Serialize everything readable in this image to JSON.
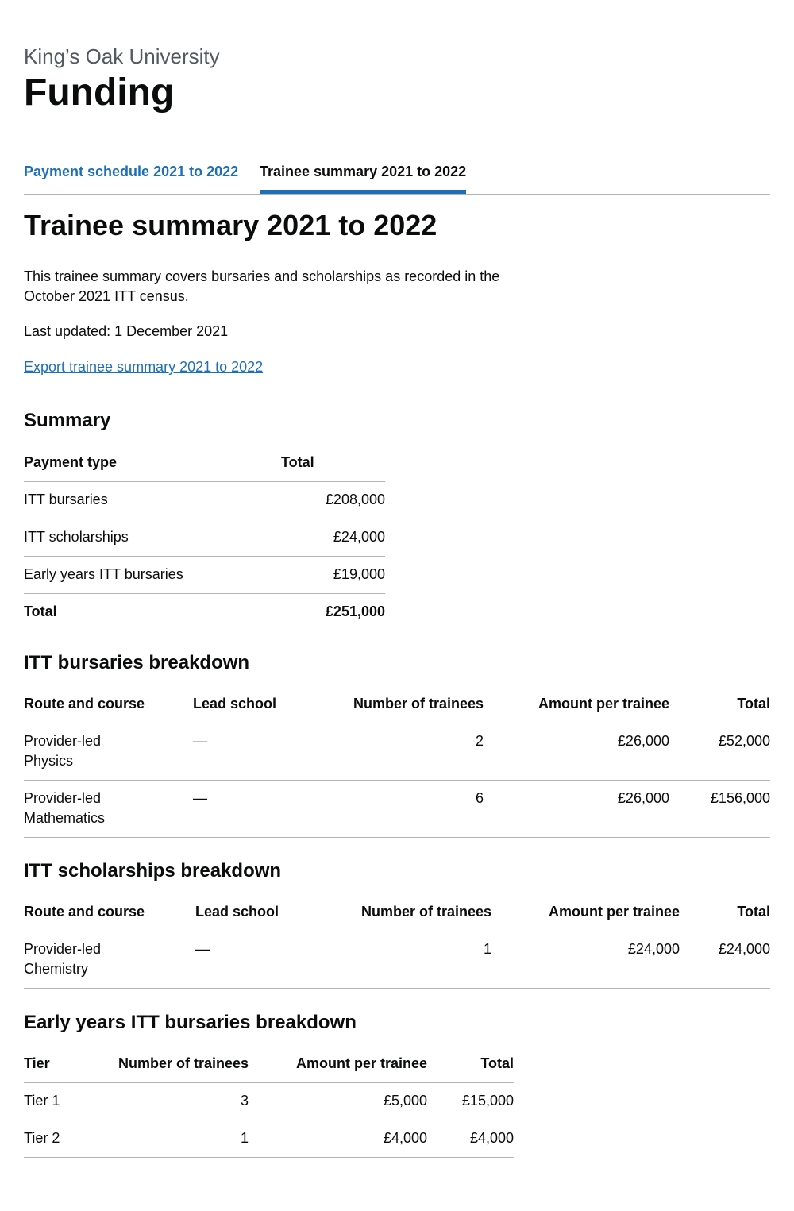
{
  "header": {
    "caption": "King’s Oak University",
    "title": "Funding"
  },
  "tabs": [
    {
      "label": "Payment schedule 2021 to 2022",
      "selected": false
    },
    {
      "label": "Trainee summary 2021 to 2022",
      "selected": true
    }
  ],
  "main": {
    "heading": "Trainee summary 2021 to 2022",
    "intro": "This trainee summary covers bursaries and scholarships as recorded in the October 2021 ITT census.",
    "last_updated": "Last updated: 1 December 2021",
    "export_link": "Export trainee summary 2021 to 2022"
  },
  "summary": {
    "heading": "Summary",
    "columns": [
      "Payment type",
      "Total"
    ],
    "rows": [
      [
        "ITT bursaries",
        "£208,000"
      ],
      [
        "ITT scholarships",
        "£24,000"
      ],
      [
        "Early years ITT bursaries",
        "£19,000"
      ]
    ],
    "total": [
      "Total",
      "£251,000"
    ]
  },
  "bursaries": {
    "heading": "ITT bursaries breakdown",
    "columns": [
      "Route and course",
      "Lead school",
      "Number of trainees",
      "Amount per trainee",
      "Total"
    ],
    "rows": [
      [
        "Provider-led Physics",
        "—",
        "2",
        "£26,000",
        "£52,000"
      ],
      [
        "Provider-led Mathematics",
        "—",
        "6",
        "£26,000",
        "£156,000"
      ]
    ]
  },
  "scholarships": {
    "heading": "ITT scholarships breakdown",
    "columns": [
      "Route and course",
      "Lead school",
      "Number of trainees",
      "Amount per trainee",
      "Total"
    ],
    "rows": [
      [
        "Provider-led Chemistry",
        "—",
        "1",
        "£24,000",
        "£24,000"
      ]
    ]
  },
  "early_years": {
    "heading": "Early years ITT bursaries breakdown",
    "columns": [
      "Tier",
      "Number of trainees",
      "Amount per trainee",
      "Total"
    ],
    "rows": [
      [
        "Tier 1",
        "3",
        "£5,000",
        "£15,000"
      ],
      [
        "Tier 2",
        "1",
        "£4,000",
        "£4,000"
      ]
    ]
  },
  "colors": {
    "link": "#1d70b8",
    "text": "#0b0c0c",
    "secondary": "#505a5f",
    "border": "#b1b4b6"
  }
}
